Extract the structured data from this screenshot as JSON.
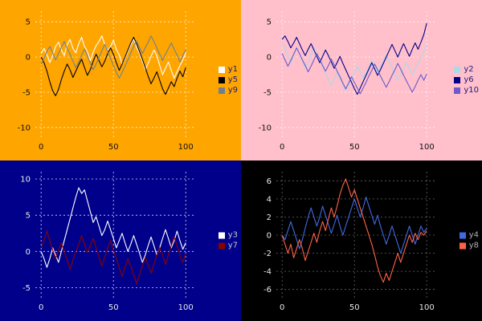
{
  "chart_data": [
    {
      "type": "line",
      "panel": "top-left",
      "title": "",
      "xlabel": "",
      "ylabel": "",
      "background": "#FFA500",
      "grid": true,
      "grid_color": "#FFFFFF",
      "tick_color": "#111111",
      "legend_position": "right",
      "legend_text_color": "#1a1a7a",
      "xlim": [
        -4,
        106
      ],
      "ylim": [
        -11.5,
        6.5
      ],
      "xticks": [
        0,
        50,
        100
      ],
      "yticks": [
        5,
        0,
        -5,
        -10
      ],
      "x": [
        0,
        2,
        4,
        6,
        8,
        10,
        12,
        14,
        16,
        18,
        20,
        22,
        24,
        26,
        28,
        30,
        32,
        34,
        36,
        38,
        40,
        42,
        44,
        46,
        48,
        50,
        52,
        54,
        56,
        58,
        60,
        62,
        64,
        66,
        68,
        70,
        72,
        74,
        76,
        78,
        80,
        82,
        84,
        86,
        88,
        90,
        92,
        94,
        96,
        98,
        100
      ],
      "series": [
        {
          "name": "y1",
          "color": "#FFFFFF",
          "values": [
            0.5,
            1.2,
            0.3,
            -0.8,
            0.2,
            1.5,
            2.1,
            1.0,
            0.2,
            1.8,
            2.5,
            1.2,
            0.6,
            1.9,
            2.8,
            1.5,
            0.8,
            -0.5,
            0.7,
            1.6,
            2.2,
            3.0,
            1.8,
            0.9,
            1.5,
            2.4,
            1.1,
            0.3,
            -1.0,
            -0.2,
            0.8,
            1.7,
            2.6,
            1.4,
            0.5,
            -0.6,
            -1.8,
            -0.9,
            0.1,
            1.0,
            0.2,
            -1.2,
            -2.5,
            -1.6,
            -0.7,
            -1.9,
            -3.0,
            -2.1,
            -1.2,
            -0.4,
            0.6
          ]
        },
        {
          "name": "y5",
          "color": "#000000",
          "values": [
            0.0,
            -0.8,
            -2.0,
            -3.5,
            -4.8,
            -5.5,
            -4.6,
            -3.2,
            -2.0,
            -1.0,
            -1.8,
            -2.9,
            -2.0,
            -1.1,
            -0.3,
            -1.5,
            -2.6,
            -1.8,
            -0.6,
            0.4,
            -0.5,
            -1.4,
            -0.6,
            0.5,
            1.3,
            0.4,
            -0.8,
            -1.9,
            -1.0,
            0.0,
            1.0,
            2.0,
            2.8,
            1.9,
            0.8,
            -0.3,
            -1.5,
            -2.7,
            -3.8,
            -3.0,
            -2.1,
            -3.3,
            -4.5,
            -5.3,
            -4.4,
            -3.5,
            -4.2,
            -3.0,
            -2.0,
            -2.8,
            -1.5
          ]
        },
        {
          "name": "y9",
          "color": "#708090",
          "values": [
            -1.0,
            -0.2,
            0.8,
            1.5,
            0.6,
            -0.4,
            0.5,
            1.4,
            2.2,
            1.2,
            0.4,
            -0.6,
            -1.5,
            -0.7,
            0.3,
            1.1,
            0.2,
            -0.9,
            -1.8,
            -1.0,
            -0.1,
            0.9,
            1.8,
            0.8,
            -0.2,
            -1.2,
            -2.2,
            -3.0,
            -2.2,
            -1.3,
            -0.4,
            0.6,
            1.5,
            2.3,
            1.4,
            0.5,
            1.3,
            2.1,
            3.0,
            2.2,
            1.3,
            0.4,
            -0.5,
            0.4,
            1.2,
            2.0,
            1.1,
            0.3,
            -0.7,
            0.2,
            1.0
          ]
        }
      ]
    },
    {
      "type": "line",
      "panel": "top-right",
      "title": "",
      "xlabel": "",
      "ylabel": "",
      "background": "#FFC0CB",
      "grid": true,
      "grid_color": "#FFFFFF",
      "tick_color": "#111111",
      "legend_position": "right",
      "legend_text_color": "#1a1a7a",
      "xlim": [
        -4,
        106
      ],
      "ylim": [
        -11.5,
        6.5
      ],
      "xticks": [
        0,
        50,
        100
      ],
      "yticks": [
        5,
        0,
        -5,
        -10
      ],
      "x": [
        0,
        2,
        4,
        6,
        8,
        10,
        12,
        14,
        16,
        18,
        20,
        22,
        24,
        26,
        28,
        30,
        32,
        34,
        36,
        38,
        40,
        42,
        44,
        46,
        48,
        50,
        52,
        54,
        56,
        58,
        60,
        62,
        64,
        66,
        68,
        70,
        72,
        74,
        76,
        78,
        80,
        82,
        84,
        86,
        88,
        90,
        92,
        94,
        96,
        98,
        100
      ],
      "series": [
        {
          "name": "y2",
          "color": "#ADD8E6",
          "values": [
            2.0,
            1.1,
            0.2,
            -0.8,
            0.3,
            1.2,
            0.4,
            -0.5,
            -1.5,
            -0.6,
            0.5,
            1.4,
            0.5,
            -0.4,
            -1.3,
            -2.3,
            -3.2,
            -4.0,
            -3.1,
            -2.2,
            -3.0,
            -3.9,
            -4.8,
            -4.0,
            -3.1,
            -2.2,
            -1.3,
            -2.1,
            -3.0,
            -2.2,
            -1.4,
            -0.5,
            -1.3,
            -2.2,
            -1.4,
            -0.6,
            0.3,
            -0.6,
            -1.5,
            -2.4,
            -3.3,
            -2.5,
            -1.6,
            -0.8,
            -1.6,
            -2.5,
            -1.7,
            -0.9,
            -0.1,
            0.8,
            1.6
          ]
        },
        {
          "name": "y6",
          "color": "#00008B",
          "values": [
            2.5,
            3.0,
            2.2,
            1.3,
            2.0,
            2.8,
            1.9,
            1.0,
            0.2,
            1.1,
            1.9,
            1.0,
            0.1,
            -0.8,
            0.1,
            1.0,
            0.2,
            -0.7,
            -1.6,
            -0.8,
            0.1,
            -0.9,
            -1.8,
            -2.7,
            -3.6,
            -4.5,
            -5.3,
            -4.4,
            -3.5,
            -2.6,
            -1.7,
            -0.8,
            -1.7,
            -2.6,
            -1.8,
            -0.9,
            0.0,
            0.9,
            1.8,
            0.9,
            0.0,
            1.0,
            1.9,
            1.0,
            0.1,
            1.1,
            2.0,
            1.1,
            2.1,
            3.2,
            4.8
          ]
        },
        {
          "name": "y10",
          "color": "#6A5ACD",
          "values": [
            0.5,
            -0.4,
            -1.3,
            -0.5,
            0.4,
            1.3,
            0.5,
            -0.4,
            -1.2,
            -2.1,
            -1.3,
            -0.4,
            0.5,
            -0.3,
            -1.2,
            -2.0,
            -1.2,
            -0.3,
            -1.1,
            -2.0,
            -2.8,
            -3.7,
            -4.5,
            -3.7,
            -2.8,
            -3.6,
            -4.4,
            -5.2,
            -4.4,
            -3.6,
            -2.7,
            -1.9,
            -1.0,
            -1.8,
            -2.7,
            -3.5,
            -4.3,
            -3.5,
            -2.6,
            -1.8,
            -0.9,
            -1.7,
            -2.6,
            -3.4,
            -4.2,
            -5.0,
            -4.2,
            -3.3,
            -2.5,
            -3.3,
            -2.4
          ]
        }
      ]
    },
    {
      "type": "line",
      "panel": "bottom-left",
      "title": "",
      "xlabel": "",
      "ylabel": "",
      "background": "#00008B",
      "grid": true,
      "grid_color": "#FFFFFF",
      "tick_color": "#E8E8E8",
      "legend_position": "right",
      "legend_text_color": "#C8C8C8",
      "xlim": [
        -4,
        106
      ],
      "ylim": [
        -6.5,
        11
      ],
      "xticks": [
        0,
        50,
        100
      ],
      "yticks": [
        10,
        5,
        0,
        -5
      ],
      "x": [
        0,
        2,
        4,
        6,
        8,
        10,
        12,
        14,
        16,
        18,
        20,
        22,
        24,
        26,
        28,
        30,
        32,
        34,
        36,
        38,
        40,
        42,
        44,
        46,
        48,
        50,
        52,
        54,
        56,
        58,
        60,
        62,
        64,
        66,
        68,
        70,
        72,
        74,
        76,
        78,
        80,
        82,
        84,
        86,
        88,
        90,
        92,
        94,
        96,
        98,
        100
      ],
      "series": [
        {
          "name": "y3",
          "color": "#FFFFFF",
          "values": [
            0.0,
            -1.0,
            -2.2,
            -1.0,
            0.5,
            -0.5,
            -1.5,
            0.0,
            1.5,
            3.0,
            4.5,
            6.0,
            7.5,
            8.8,
            8.0,
            8.5,
            7.0,
            5.5,
            4.0,
            4.8,
            3.5,
            2.2,
            3.0,
            4.2,
            3.0,
            1.8,
            0.5,
            1.5,
            2.5,
            1.2,
            0.0,
            1.0,
            2.2,
            1.0,
            -0.2,
            -1.5,
            -0.5,
            0.8,
            2.0,
            0.8,
            -0.5,
            0.5,
            1.8,
            3.0,
            1.8,
            0.5,
            1.5,
            2.8,
            1.5,
            0.3,
            1.2
          ]
        },
        {
          "name": "y7",
          "color": "#8B0000",
          "values": [
            0.5,
            1.5,
            2.8,
            1.5,
            0.2,
            -1.0,
            0.2,
            1.2,
            0.0,
            -1.2,
            -2.5,
            -1.2,
            0.0,
            1.0,
            2.2,
            1.0,
            -0.2,
            0.8,
            1.8,
            0.5,
            -0.8,
            -2.0,
            -0.8,
            0.5,
            1.5,
            0.2,
            -1.0,
            -2.2,
            -3.5,
            -2.2,
            -1.0,
            -2.0,
            -3.2,
            -4.5,
            -3.2,
            -2.0,
            -0.8,
            -1.8,
            -3.0,
            -1.8,
            -0.5,
            0.5,
            -0.5,
            -1.8,
            -0.5,
            0.8,
            2.0,
            0.8,
            -0.5,
            -1.5,
            -0.3
          ]
        }
      ]
    },
    {
      "type": "line",
      "panel": "bottom-right",
      "title": "",
      "xlabel": "",
      "ylabel": "",
      "background": "#000000",
      "grid": true,
      "grid_color": "#777777",
      "tick_color": "#E8E8E8",
      "legend_position": "right",
      "legend_text_color": "#B0B0B0",
      "xlim": [
        -4,
        106
      ],
      "ylim": [
        -7,
        7
      ],
      "xticks": [
        0,
        50,
        100
      ],
      "yticks": [
        6,
        4,
        2,
        0,
        -2,
        -4,
        -6
      ],
      "x": [
        0,
        2,
        4,
        6,
        8,
        10,
        12,
        14,
        16,
        18,
        20,
        22,
        24,
        26,
        28,
        30,
        32,
        34,
        36,
        38,
        40,
        42,
        44,
        46,
        48,
        50,
        52,
        54,
        56,
        58,
        60,
        62,
        64,
        66,
        68,
        70,
        72,
        74,
        76,
        78,
        80,
        82,
        84,
        86,
        88,
        90,
        92,
        94,
        96,
        98,
        100
      ],
      "series": [
        {
          "name": "y4",
          "color": "#4169E1",
          "values": [
            0.0,
            -0.5,
            0.5,
            1.5,
            0.5,
            -0.5,
            -1.5,
            -0.5,
            0.8,
            2.0,
            3.0,
            2.0,
            1.0,
            2.0,
            3.2,
            2.2,
            1.2,
            0.2,
            1.2,
            2.2,
            1.0,
            0.0,
            1.0,
            2.0,
            3.0,
            4.0,
            3.0,
            2.0,
            3.0,
            4.2,
            3.2,
            2.2,
            1.2,
            2.2,
            1.0,
            0.0,
            -1.0,
            0.0,
            1.0,
            0.0,
            -1.0,
            -2.0,
            -1.0,
            0.0,
            1.0,
            0.0,
            -1.0,
            0.0,
            1.0,
            0.3,
            0.8
          ]
        },
        {
          "name": "y8",
          "color": "#FF6347",
          "values": [
            0.0,
            -1.0,
            -2.0,
            -1.0,
            -2.5,
            -1.5,
            -0.5,
            -1.5,
            -2.8,
            -1.8,
            -0.8,
            0.2,
            -0.8,
            0.5,
            1.5,
            0.5,
            1.8,
            3.0,
            2.0,
            3.2,
            4.5,
            5.5,
            6.2,
            5.2,
            4.2,
            5.0,
            4.0,
            3.0,
            2.0,
            1.0,
            0.0,
            -1.0,
            -2.2,
            -3.5,
            -4.5,
            -5.2,
            -4.2,
            -5.0,
            -4.0,
            -3.0,
            -2.0,
            -3.0,
            -2.0,
            -1.0,
            0.0,
            -0.8,
            0.2,
            -0.5,
            0.3,
            0.0,
            0.5
          ]
        }
      ]
    }
  ]
}
